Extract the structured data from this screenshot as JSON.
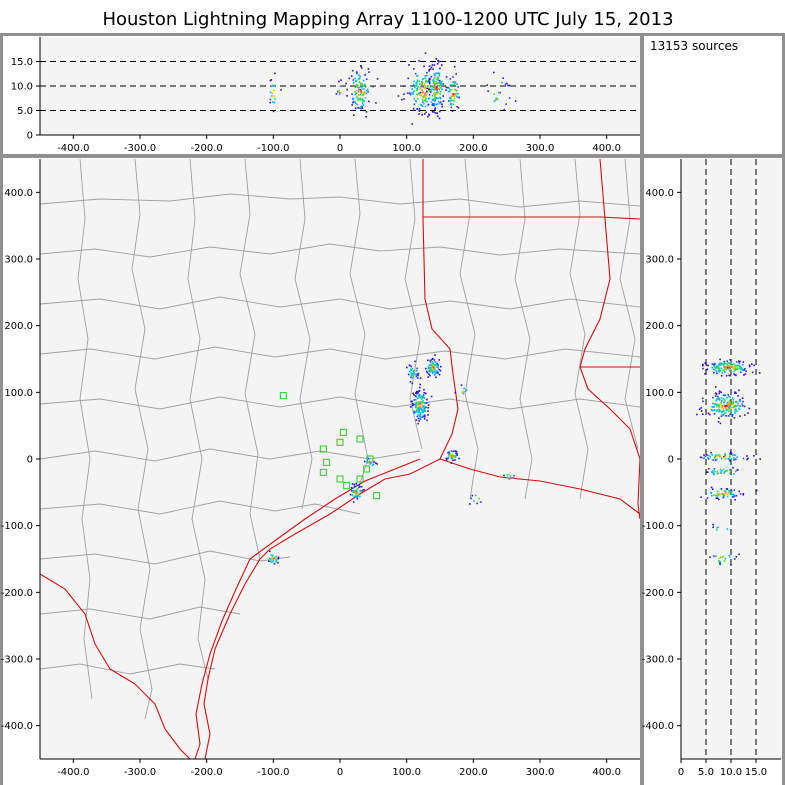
{
  "title": "Houston Lightning Mapping Array   1100-1200 UTC  July 15, 2013",
  "source_count_text": "13153 sources",
  "colors": {
    "frame": "#909090",
    "panel_bg": "#f4f4f4",
    "county_lines": "#a0a0a0",
    "coast_state_lines": "#d01010",
    "stations": "#20d020",
    "source_colormap": [
      "#3010c8",
      "#2040ff",
      "#00b0ff",
      "#10d0a0",
      "#40e020",
      "#d0d000",
      "#ff8000",
      "#e00000"
    ]
  },
  "chart_data": [
    {
      "id": "altitude_vs_x",
      "type": "scatter",
      "xlim": [
        -450,
        450
      ],
      "ylim": [
        0,
        20
      ],
      "xticks": [
        -400,
        -300,
        -200,
        -100,
        0,
        100,
        200,
        300,
        400
      ],
      "xtick_labels": [
        "-400.0",
        "-300.0",
        "-200.0",
        "-100.0",
        "0",
        "100.0",
        "200.0",
        "300.0",
        "400.0"
      ],
      "yticks": [
        0,
        5,
        10,
        15
      ],
      "ytick_labels": [
        "0",
        "5.0",
        "10.0",
        "15.0"
      ],
      "dashed_reference_lines": [
        5,
        10,
        15
      ],
      "clusters": [
        {
          "x": -100,
          "y": 8.5,
          "sx": 3,
          "sy": 1.8,
          "n": 20
        },
        {
          "x": 0,
          "y": 8.5,
          "sx": 2,
          "sy": 1.2,
          "n": 10
        },
        {
          "x": 30,
          "y": 9,
          "sx": 8,
          "sy": 2.2,
          "n": 110
        },
        {
          "x": 125,
          "y": 9,
          "sx": 12,
          "sy": 2.5,
          "n": 170
        },
        {
          "x": 145,
          "y": 9.5,
          "sx": 6,
          "sy": 2.5,
          "n": 120
        },
        {
          "x": 170,
          "y": 8.5,
          "sx": 5,
          "sy": 2.0,
          "n": 60
        },
        {
          "x": 240,
          "y": 8.5,
          "sx": 10,
          "sy": 1.5,
          "n": 20
        }
      ]
    },
    {
      "id": "plan_view_map",
      "type": "scatter",
      "xlim": [
        -450,
        450
      ],
      "ylim": [
        -450,
        450
      ],
      "xticks": [
        -400,
        -300,
        -200,
        -100,
        0,
        100,
        200,
        300,
        400
      ],
      "xtick_labels": [
        "-400.0",
        "-300.0",
        "-200.0",
        "-100.0",
        "0",
        "100.0",
        "200.0",
        "300.0",
        "400.0"
      ],
      "yticks": [
        400,
        300,
        200,
        100,
        0,
        -100,
        -200,
        -300,
        -400
      ],
      "ytick_labels": [
        "400.0",
        "300.0",
        "200.0",
        "100.0",
        "0",
        "-100.0",
        "-200.0",
        "-300.0",
        "-400.0"
      ],
      "clusters": [
        {
          "x": 120,
          "y": 80,
          "sx": 6,
          "sy": 12,
          "n": 140
        },
        {
          "x": 140,
          "y": 137,
          "sx": 5,
          "sy": 7,
          "n": 90
        },
        {
          "x": 110,
          "y": 130,
          "sx": 4,
          "sy": 6,
          "n": 40
        },
        {
          "x": 168,
          "y": 5,
          "sx": 5,
          "sy": 4,
          "n": 40
        },
        {
          "x": 25,
          "y": -50,
          "sx": 5,
          "sy": 6,
          "n": 45
        },
        {
          "x": -100,
          "y": -150,
          "sx": 4,
          "sy": 5,
          "n": 25
        },
        {
          "x": 45,
          "y": -5,
          "sx": 4,
          "sy": 4,
          "n": 15
        },
        {
          "x": 255,
          "y": -25,
          "sx": 4,
          "sy": 4,
          "n": 10
        },
        {
          "x": 205,
          "y": -60,
          "sx": 5,
          "sy": 4,
          "n": 8
        },
        {
          "x": 185,
          "y": 100,
          "sx": 4,
          "sy": 4,
          "n": 8
        }
      ],
      "stations": [
        {
          "x": -85,
          "y": 95
        },
        {
          "x": -25,
          "y": 15
        },
        {
          "x": -20,
          "y": -5
        },
        {
          "x": -25,
          "y": -20
        },
        {
          "x": 0,
          "y": 25
        },
        {
          "x": 5,
          "y": 40
        },
        {
          "x": 30,
          "y": 30
        },
        {
          "x": 0,
          "y": -30
        },
        {
          "x": 10,
          "y": -40
        },
        {
          "x": 30,
          "y": -30
        },
        {
          "x": 45,
          "y": 0
        },
        {
          "x": 55,
          "y": -55
        },
        {
          "x": 40,
          "y": -15
        }
      ]
    },
    {
      "id": "y_vs_altitude",
      "type": "scatter",
      "xlim": [
        0,
        20
      ],
      "ylim": [
        -450,
        450
      ],
      "xticks": [
        0,
        5,
        10,
        15
      ],
      "xtick_labels": [
        "0",
        "5.0",
        "10.0",
        "15.0"
      ],
      "yticks": [
        400,
        300,
        200,
        100,
        0,
        -100,
        -200,
        -300,
        -400
      ],
      "ytick_labels": [
        "400.0",
        "300.0",
        "200.0",
        "100.0",
        "0",
        "-100.0",
        "-200.0",
        "-300.0",
        "-400.0"
      ],
      "dashed_reference_lines": [
        5,
        10,
        15
      ],
      "clusters": [
        {
          "x": 9.5,
          "y": 137,
          "sx": 2.2,
          "sy": 6,
          "n": 150
        },
        {
          "x": 9.0,
          "y": 80,
          "sx": 2.2,
          "sy": 10,
          "n": 170
        },
        {
          "x": 8.5,
          "y": 3,
          "sx": 2.5,
          "sy": 3,
          "n": 60
        },
        {
          "x": 8.5,
          "y": -20,
          "sx": 1.8,
          "sy": 4,
          "n": 30
        },
        {
          "x": 8.5,
          "y": -52,
          "sx": 2.0,
          "sy": 4,
          "n": 60
        },
        {
          "x": 8.5,
          "y": -150,
          "sx": 1.5,
          "sy": 4,
          "n": 20
        },
        {
          "x": 8.0,
          "y": -105,
          "sx": 1.0,
          "sy": 3,
          "n": 6
        }
      ]
    }
  ]
}
